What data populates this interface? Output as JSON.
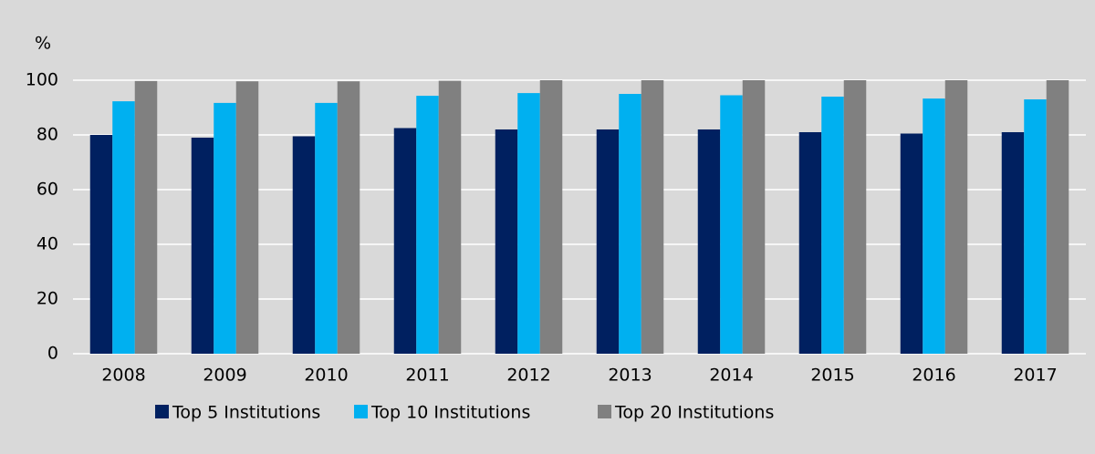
{
  "chart_data": {
    "type": "bar",
    "y_label": "%",
    "categories": [
      "2008",
      "2009",
      "2010",
      "2011",
      "2012",
      "2013",
      "2014",
      "2015",
      "2016",
      "2017"
    ],
    "series": [
      {
        "name": "Top 5 Institutions",
        "color": "#002060",
        "values": [
          80,
          79,
          79.5,
          82.5,
          82,
          82,
          82,
          81,
          80.5,
          81
        ]
      },
      {
        "name": "Top 10 Institutions",
        "color": "#00b0f0",
        "values": [
          92.3,
          91.7,
          91.7,
          94.3,
          95.3,
          95,
          94.5,
          94,
          93.3,
          93
        ]
      },
      {
        "name": "Top 20 Institutions",
        "color": "#808080",
        "values": [
          99.7,
          99.6,
          99.6,
          99.8,
          100,
          100,
          100,
          100,
          100,
          100
        ]
      }
    ],
    "ylim": [
      0,
      100
    ],
    "yticks": [
      0,
      20,
      40,
      60,
      80,
      100
    ],
    "grid": true,
    "legend": "bottom"
  }
}
